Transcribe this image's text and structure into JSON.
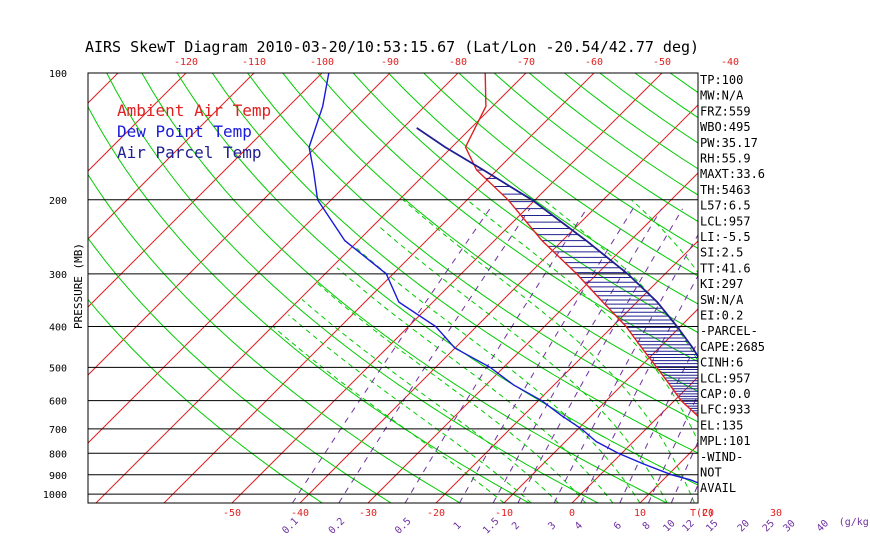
{
  "chart_data": {
    "type": "skewt",
    "title": "AIRS SkewT Diagram 2010-03-20/10:53:15.67 (Lat/Lon -20.54/42.77 deg)",
    "ylabel": "PRESSURE (MB)",
    "pressure_ticks": [
      100,
      200,
      300,
      400,
      500,
      600,
      700,
      800,
      900,
      1000
    ],
    "bottom_temp_ticks": [
      -50,
      -40,
      -30,
      -20,
      -10,
      0,
      10,
      20,
      30
    ],
    "top_temp_ticks": [
      -120,
      -110,
      -100,
      -90,
      -80,
      -70,
      -60,
      -50,
      -40
    ],
    "temp_unit_label": "T(C)",
    "mixing_ratio_ticks": [
      "0.1",
      "0.2",
      "0.5",
      "1",
      "1.5",
      "2",
      "3",
      "4",
      "6",
      "8",
      "10",
      "12",
      "15",
      "20",
      "25",
      "30",
      "40"
    ],
    "mixing_ratio_unit": "(g/kg)",
    "legend": [
      {
        "label": "Ambient Air Temp",
        "color": "#e02020"
      },
      {
        "label": "Dew Point Temp",
        "color": "#1a1ad8"
      },
      {
        "label": "Air Parcel Temp",
        "color": "#202090"
      }
    ],
    "series": [
      {
        "name": "Ambient Air Temp",
        "points": [
          [
            1000,
            27.5
          ],
          [
            975,
            24.5
          ],
          [
            950,
            23.0
          ],
          [
            925,
            22.5
          ],
          [
            900,
            20.5
          ],
          [
            850,
            17.5
          ],
          [
            800,
            14.5
          ],
          [
            750,
            11.5
          ],
          [
            700,
            9.0
          ],
          [
            650,
            5.5
          ],
          [
            600,
            1.0
          ],
          [
            550,
            -3.0
          ],
          [
            500,
            -7.5
          ],
          [
            450,
            -12.5
          ],
          [
            400,
            -18.0
          ],
          [
            350,
            -25.0
          ],
          [
            300,
            -33.0
          ],
          [
            250,
            -43.0
          ],
          [
            200,
            -54.0
          ],
          [
            170,
            -63.0
          ],
          [
            150,
            -68.0
          ],
          [
            120,
            -71.0
          ],
          [
            100,
            -76.0
          ]
        ]
      },
      {
        "name": "Dew Point Temp",
        "points": [
          [
            1000,
            22.5
          ],
          [
            975,
            20.5
          ],
          [
            950,
            16.5
          ],
          [
            925,
            14.0
          ],
          [
            900,
            10.5
          ],
          [
            850,
            5.0
          ],
          [
            800,
            -0.5
          ],
          [
            750,
            -5.5
          ],
          [
            700,
            -9.5
          ],
          [
            650,
            -14.5
          ],
          [
            600,
            -19.5
          ],
          [
            550,
            -26.0
          ],
          [
            500,
            -32.0
          ],
          [
            450,
            -40.0
          ],
          [
            400,
            -46.0
          ],
          [
            350,
            -55.0
          ],
          [
            300,
            -61.0
          ],
          [
            250,
            -72.0
          ],
          [
            200,
            -82.0
          ],
          [
            170,
            -87.0
          ],
          [
            150,
            -91.0
          ],
          [
            120,
            -95.0
          ],
          [
            100,
            -99.0
          ]
        ]
      },
      {
        "name": "Air Parcel Temp",
        "points": [
          [
            1000,
            27.5
          ],
          [
            975,
            25.0
          ],
          [
            957,
            23.5
          ],
          [
            933,
            22.5
          ],
          [
            900,
            21.5
          ],
          [
            850,
            19.5
          ],
          [
            800,
            17.5
          ],
          [
            750,
            15.5
          ],
          [
            700,
            13.0
          ],
          [
            650,
            10.5
          ],
          [
            600,
            7.0
          ],
          [
            550,
            3.5
          ],
          [
            500,
            -0.5
          ],
          [
            450,
            -5.0
          ],
          [
            400,
            -10.5
          ],
          [
            350,
            -17.0
          ],
          [
            300,
            -25.5
          ],
          [
            250,
            -36.5
          ],
          [
            200,
            -50.5
          ],
          [
            170,
            -62.0
          ],
          [
            150,
            -71.0
          ],
          [
            135,
            -78.0
          ]
        ]
      }
    ],
    "indices": [
      "TP:100",
      "MW:N/A",
      "FRZ:559",
      "WBO:495",
      "PW:35.17",
      "RH:55.9",
      "MAXT:33.6",
      "TH:5463",
      "L57:6.5",
      "LCL:957",
      "LI:-5.5",
      "SI:2.5",
      "TT:41.6",
      "KI:297",
      "SW:N/A",
      "EI:0.2",
      "-PARCEL-",
      "CAPE:2685",
      "CINH:6",
      "LCL:957",
      "CAP:0.0",
      "LFC:933",
      "EL:135",
      "MPL:101",
      "-WIND-",
      "NOT",
      "AVAIL"
    ],
    "colors": {
      "isotherm": "#e02020",
      "dry_adiabat": "#00cc00",
      "moist_adiabat": "#00cc00",
      "mixing_ratio": "#7030a0",
      "isobar": "#000000",
      "cape_hatch": "#202090"
    }
  }
}
